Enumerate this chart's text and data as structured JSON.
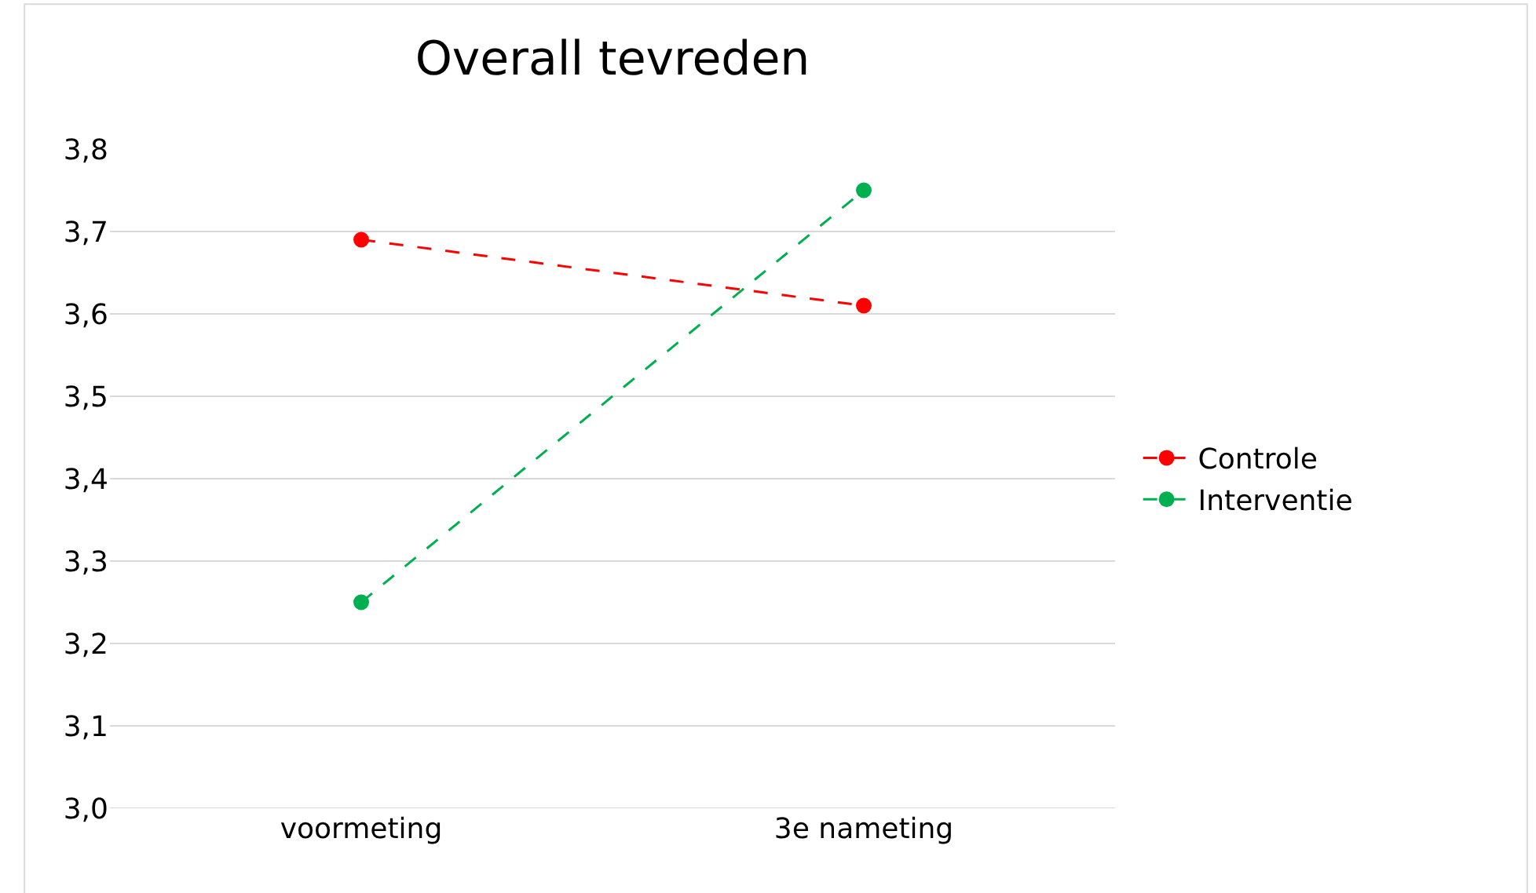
{
  "chart_data": {
    "type": "line",
    "title": "Overall tevreden",
    "categories": [
      "voormeting",
      "3e nameting"
    ],
    "series": [
      {
        "name": "Controle",
        "color": "#ff0000",
        "values": [
          3.69,
          3.61
        ]
      },
      {
        "name": "Interventie",
        "color": "#00b050",
        "values": [
          3.25,
          3.75
        ]
      }
    ],
    "ylim": [
      3.0,
      3.8
    ],
    "yticks": [
      {
        "value": 3.0,
        "label": "3,0"
      },
      {
        "value": 3.1,
        "label": "3,1"
      },
      {
        "value": 3.2,
        "label": "3,2"
      },
      {
        "value": 3.3,
        "label": "3,3"
      },
      {
        "value": 3.4,
        "label": "3,4"
      },
      {
        "value": 3.5,
        "label": "3,5"
      },
      {
        "value": 3.6,
        "label": "3,6"
      },
      {
        "value": 3.7,
        "label": "3,7"
      },
      {
        "value": 3.8,
        "label": "3,8"
      }
    ],
    "grid": "y",
    "legend": "right",
    "marker": "circle",
    "line_style": "dashed"
  }
}
